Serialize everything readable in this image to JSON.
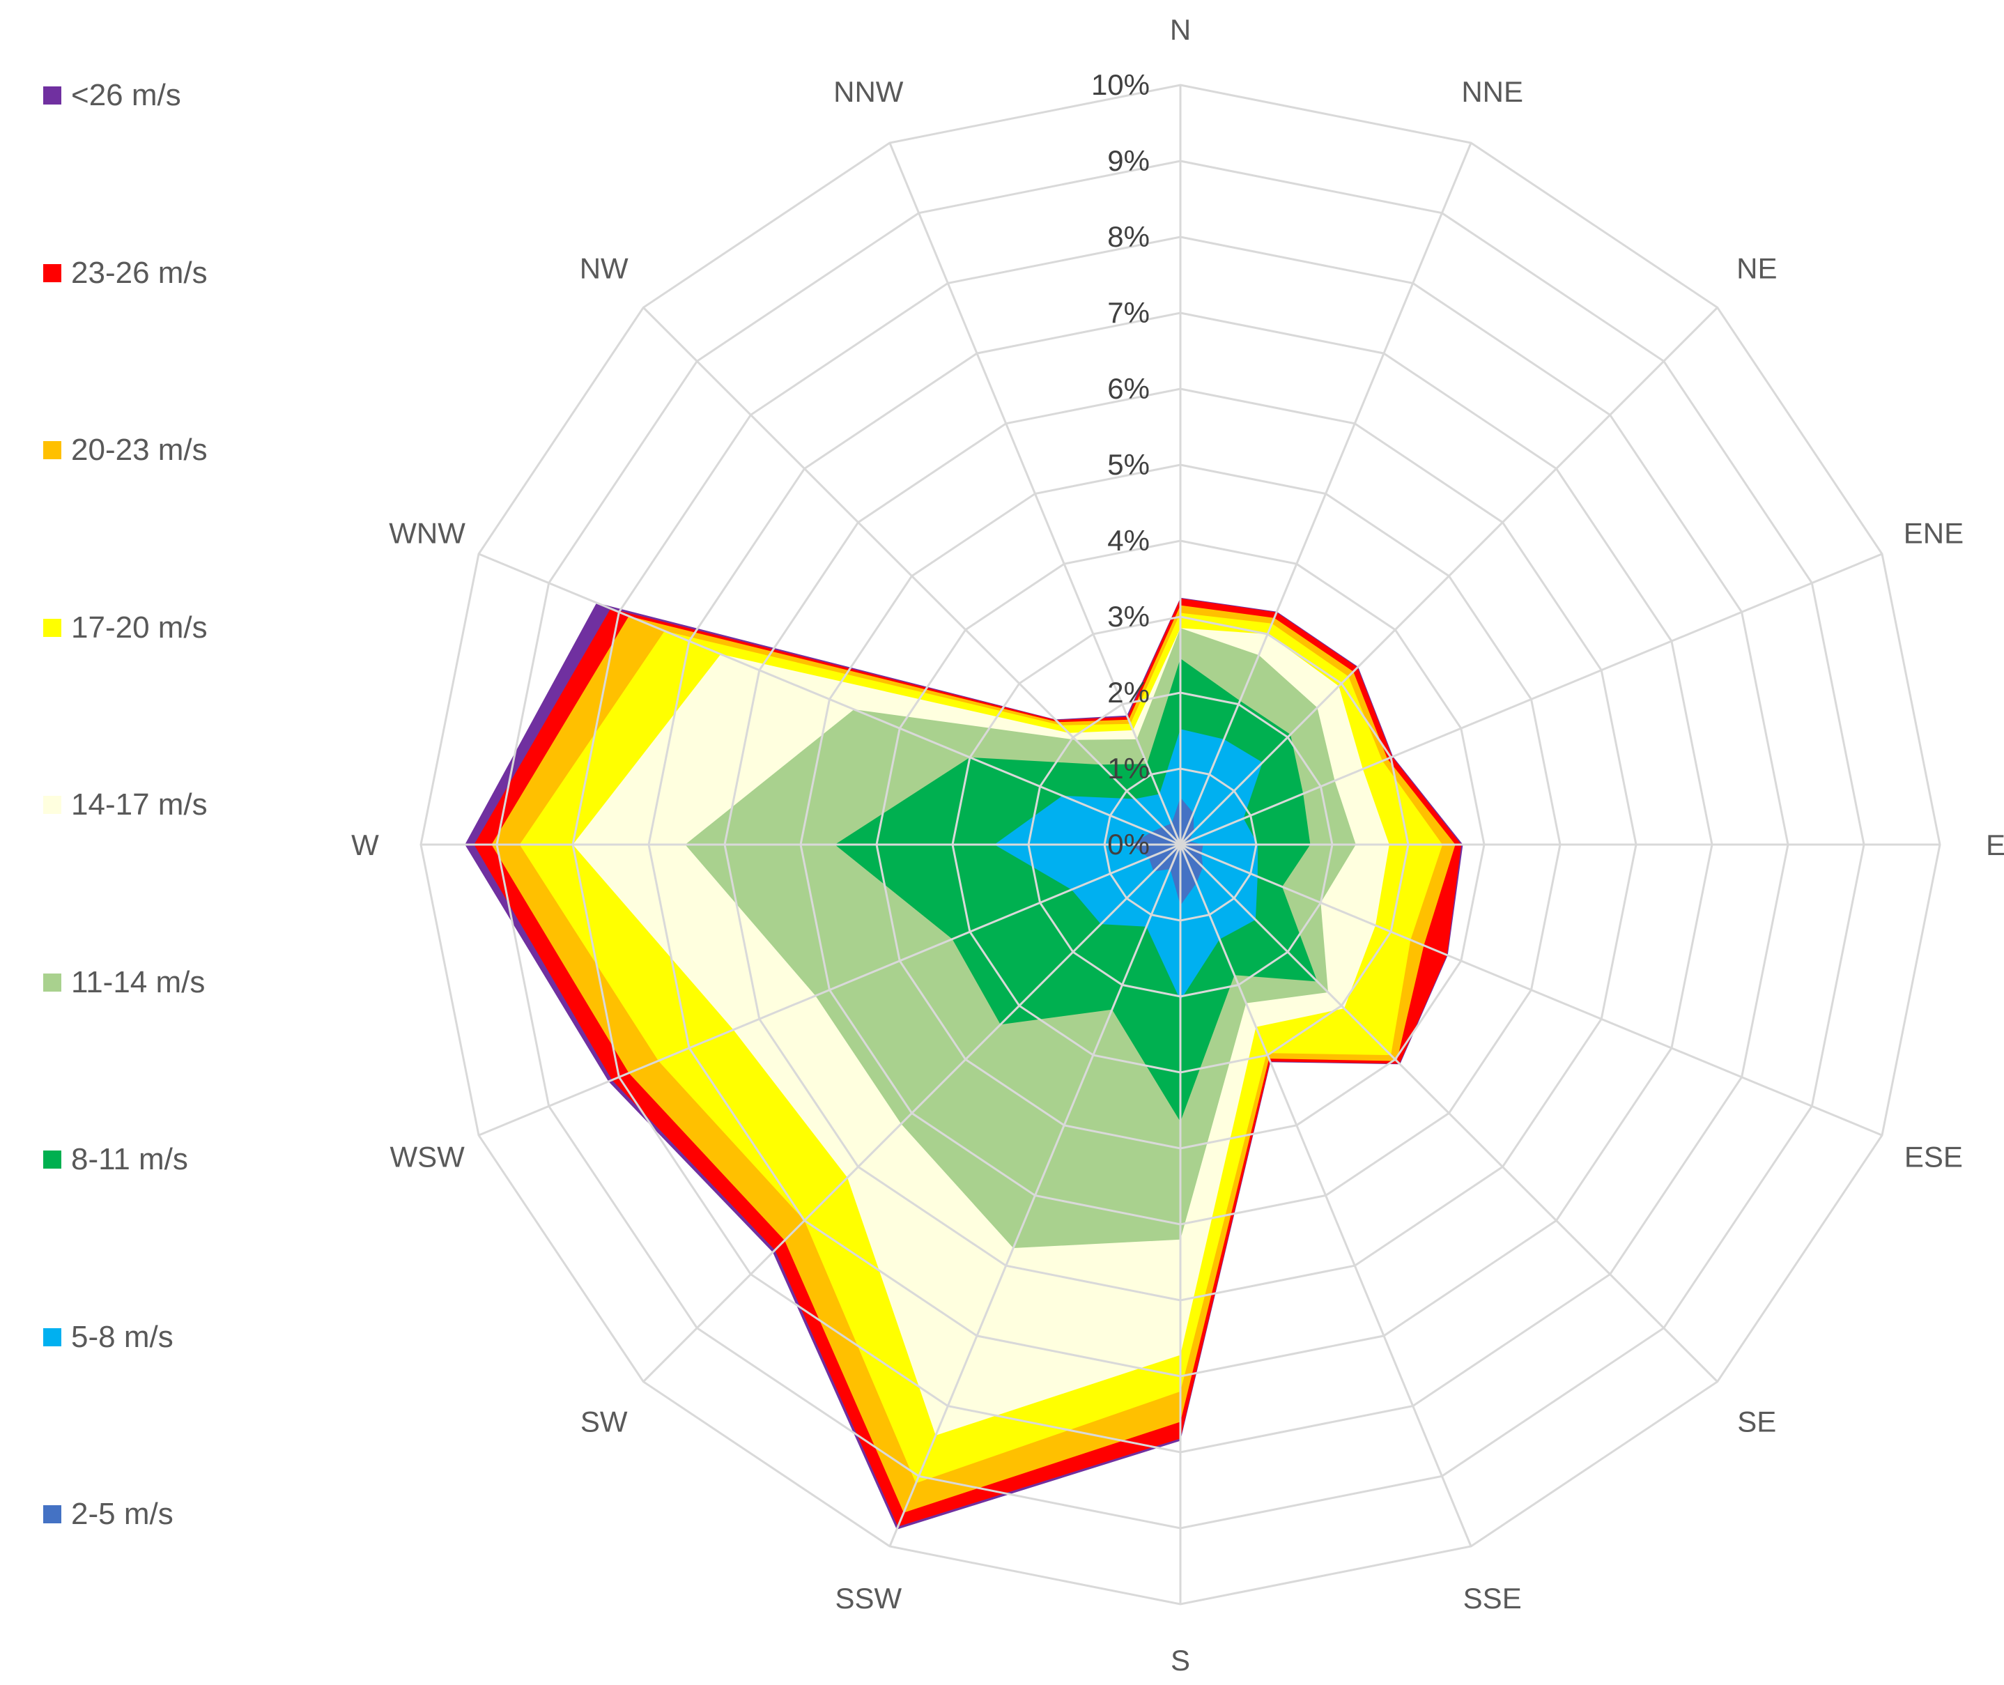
{
  "chart_data": {
    "type": "radar",
    "title": "",
    "directions": [
      "N",
      "NNE",
      "NE",
      "ENE",
      "E",
      "ESE",
      "SE",
      "SSE",
      "S",
      "SSW",
      "SW",
      "WSW",
      "W",
      "WNW",
      "NW",
      "NNW"
    ],
    "r_ticks": [
      "0%",
      "1%",
      "2%",
      "3%",
      "4%",
      "5%",
      "6%",
      "7%",
      "8%",
      "9%",
      "10%"
    ],
    "r_range": [
      0,
      10
    ],
    "grid": true,
    "legend_position": "left",
    "series": [
      {
        "name": "<26 m/s",
        "color": "#7030A0",
        "values": [
          3.25,
          3.32,
          3.31,
          3.03,
          3.72,
          3.81,
          4.09,
          3.1,
          7.85,
          9.76,
          7.59,
          8.15,
          9.42,
          8.32,
          2.33,
          1.84
        ]
      },
      {
        "name": "23-26 m/s",
        "color": "#FF0000",
        "values": [
          3.24,
          3.31,
          3.3,
          3.02,
          3.7,
          3.8,
          4.08,
          3.09,
          7.82,
          9.72,
          7.55,
          8.1,
          9.3,
          8.12,
          2.32,
          1.82
        ]
      },
      {
        "name": "20-23 m/s",
        "color": "#FFC000",
        "values": [
          3.15,
          3.23,
          3.22,
          2.95,
          3.62,
          3.47,
          4.03,
          3.05,
          7.6,
          9.52,
          7.37,
          7.86,
          9.07,
          7.86,
          2.28,
          1.78
        ]
      },
      {
        "name": "17-20 m/s",
        "color": "#FFFF00",
        "values": [
          3.05,
          3.15,
          3.13,
          2.88,
          3.45,
          3.28,
          3.92,
          2.97,
          7.2,
          9.1,
          7.0,
          7.44,
          8.7,
          7.35,
          2.22,
          1.72
        ]
      },
      {
        "name": "14-17 m/s",
        "color": "#FFFFDF",
        "values": [
          2.85,
          3.0,
          2.95,
          2.6,
          2.75,
          2.78,
          3.05,
          2.6,
          6.72,
          8.42,
          6.2,
          6.37,
          8.0,
          6.55,
          2.08,
          1.63
        ]
      },
      {
        "name": "11-14 m/s",
        "color": "#A9D18E",
        "values": [
          2.85,
          2.7,
          2.55,
          2.2,
          2.31,
          2.0,
          2.75,
          2.26,
          5.2,
          5.75,
          5.2,
          5.2,
          6.52,
          4.65,
          1.95,
          1.5
        ]
      },
      {
        "name": "8-11 m/s",
        "color": "#00B050",
        "values": [
          2.45,
          2.05,
          2.05,
          1.75,
          1.71,
          1.45,
          2.55,
          1.86,
          3.65,
          2.35,
          3.35,
          3.25,
          4.55,
          3.0,
          1.49,
          1.15
        ]
      },
      {
        "name": "5-8 m/s",
        "color": "#00B0F0",
        "values": [
          1.52,
          1.5,
          1.53,
          0.9,
          1.02,
          1.1,
          1.4,
          1.35,
          2.05,
          1.17,
          1.48,
          1.55,
          2.45,
          1.68,
          0.85,
          0.72
        ]
      },
      {
        "name": "2-5 m/s",
        "color": "#4472C4",
        "values": [
          0.62,
          0.45,
          0.25,
          0.12,
          0.3,
          0.3,
          0.42,
          0.55,
          0.8,
          0.35,
          0.5,
          0.45,
          0.65,
          0.42,
          0.33,
          0.3
        ]
      }
    ]
  }
}
